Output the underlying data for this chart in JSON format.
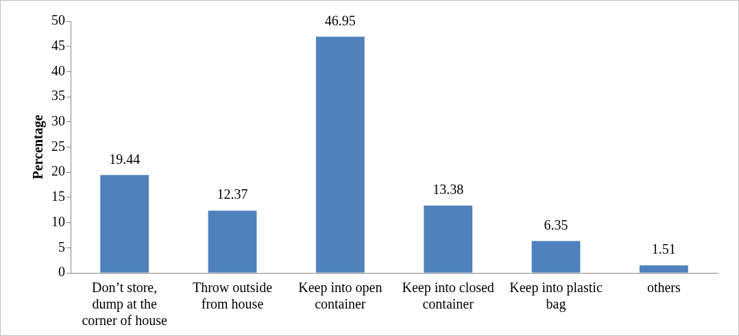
{
  "chart_data": {
    "type": "bar",
    "ylabel": "Percentage",
    "categories": [
      "Don’t store, dump at the corner of house",
      "Throw outside from house",
      "Keep into open container",
      "Keep into closed container",
      "Keep into plastic bag",
      "others"
    ],
    "values": [
      19.44,
      12.37,
      46.95,
      13.38,
      6.35,
      1.51
    ],
    "color": "#4f81bd",
    "ylim": [
      0,
      50
    ],
    "yticks": [
      0,
      5,
      10,
      15,
      20,
      25,
      30,
      35,
      40,
      45,
      50
    ],
    "grid": false,
    "legend": false,
    "data_labels": true
  }
}
